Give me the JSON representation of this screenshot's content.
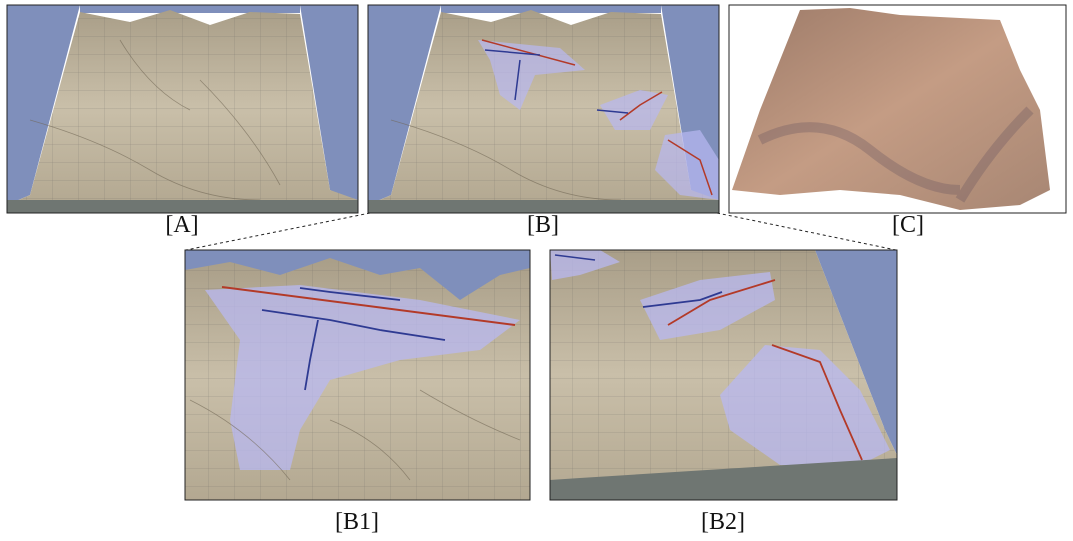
{
  "panels": [
    {
      "label": "[A]"
    },
    {
      "label": "[B]"
    },
    {
      "label": "[C]"
    },
    {
      "label": "[B1]"
    },
    {
      "label": "[B2]"
    }
  ]
}
